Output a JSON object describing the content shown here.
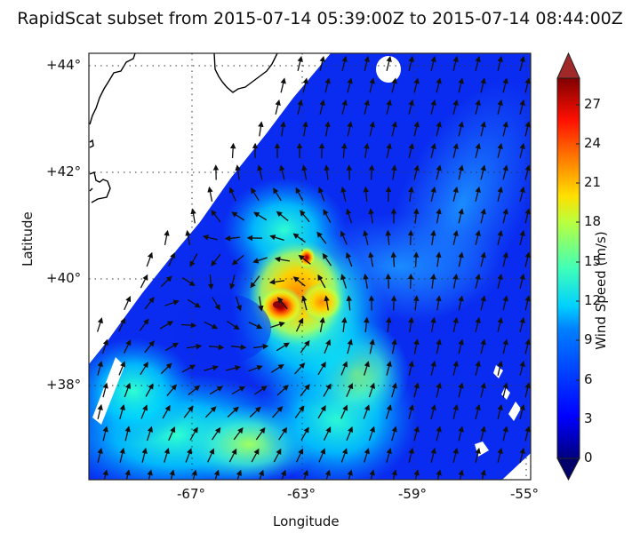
{
  "title": "RapidScat subset from 2015-07-14 05:39:00Z to 2015-07-14 08:44:00Z",
  "axes": {
    "xlabel": "Longitude",
    "ylabel": "Latitude",
    "x_ticks": [
      "-67°",
      "-63°",
      "-59°",
      "-55°"
    ],
    "y_ticks": [
      "+44°",
      "+42°",
      "+40°",
      "+38°"
    ]
  },
  "colorbar": {
    "label": "Wind Speed (m/s)",
    "ticks": [
      "27",
      "24",
      "21",
      "18",
      "15",
      "12",
      "9",
      "6",
      "3",
      "0"
    ],
    "extend": "both",
    "colormap": "jet",
    "range": [
      0,
      29
    ]
  },
  "chart_data": {
    "type": "heatmap",
    "subtype": "wind-vector-map",
    "title": "RapidScat subset from 2015-07-14 05:39:00Z to 2015-07-14 08:44:00Z",
    "xlabel": "Longitude",
    "ylabel": "Latitude",
    "xlim": [
      -70.7,
      -54.8
    ],
    "ylim": [
      36.6,
      44.2
    ],
    "x_ticks": [
      -67,
      -63,
      -59,
      -55
    ],
    "y_ticks": [
      44,
      42,
      40,
      38
    ],
    "grid": "dotted",
    "colorbar": {
      "label": "Wind Speed (m/s)",
      "min": 0,
      "max": 29,
      "ticks": [
        0,
        3,
        6,
        9,
        12,
        15,
        18,
        21,
        24,
        27
      ]
    },
    "features": [
      {
        "name": "storm-center",
        "lon": -63.9,
        "lat": 39.7,
        "max_wind_ms": 28
      },
      {
        "name": "secondary-max",
        "lon": -63.2,
        "lat": 40.4,
        "wind_ms": 22
      },
      {
        "name": "eastern-eyewall",
        "lon": -62.6,
        "lat": 39.7,
        "wind_ms": 21
      },
      {
        "name": "background-north",
        "lon": -60,
        "lat": 42.5,
        "wind_ms": 4
      },
      {
        "name": "southwest-band",
        "lon": -67,
        "lat": 37.5,
        "wind_ms": 11
      }
    ],
    "circulation": "cyclonic (counter-clockwise)",
    "coastline": "New England / Nova Scotia (upper left)"
  }
}
